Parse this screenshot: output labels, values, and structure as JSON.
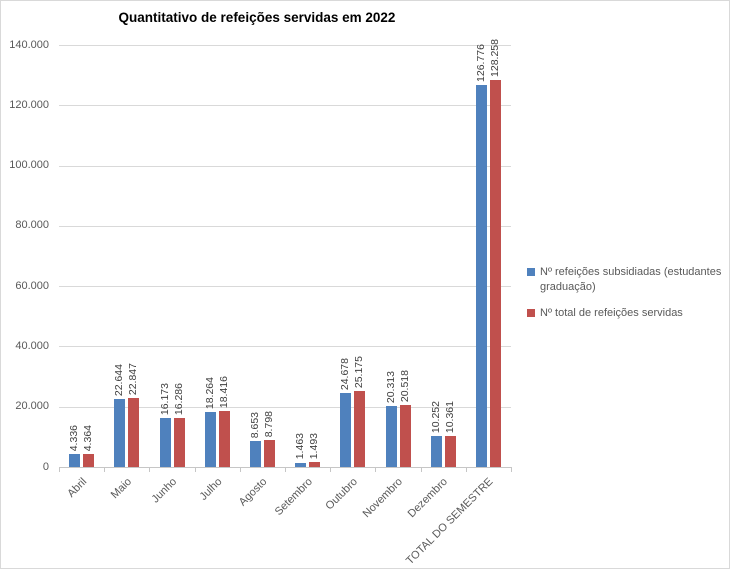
{
  "title": "Quantitativo de refeições servidas em 2022",
  "chart_data": {
    "type": "bar",
    "categories": [
      "Abril",
      "Maio",
      "Junho",
      "Julho",
      "Agosto",
      "Setembro",
      "Outubro",
      "Novembro",
      "Dezembro",
      "TOTAL DO SEMESTRE"
    ],
    "series": [
      {
        "name": "Nº refeições subsidiadas (estudantes graduação)",
        "color": "#4F81BD",
        "values": [
          4336,
          22644,
          16173,
          18264,
          8653,
          1463,
          24678,
          20313,
          10252,
          126776
        ],
        "labels": [
          "4.336",
          "22.644",
          "16.173",
          "18.264",
          "8.653",
          "1.463",
          "24.678",
          "20.313",
          "10.252",
          "126.776"
        ]
      },
      {
        "name": "Nº total de refeições servidas",
        "color": "#C0504D",
        "values": [
          4364,
          22847,
          16286,
          18416,
          8798,
          1493,
          25175,
          20518,
          10361,
          128258
        ],
        "labels": [
          "4.364",
          "22.847",
          "16.286",
          "18.416",
          "8.798",
          "1.493",
          "25.175",
          "20.518",
          "10.361",
          "128.258"
        ]
      }
    ],
    "ylim": [
      0,
      140000
    ],
    "ytick_step": 20000,
    "ytick_labels": [
      "0",
      "20.000",
      "40.000",
      "60.000",
      "80.000",
      "100.000",
      "120.000",
      "140.000"
    ],
    "grid": true,
    "legend_position": "right",
    "xlabel": "",
    "ylabel": ""
  },
  "colors": {
    "grid": "#D9D9D9",
    "axis": "#C6C6C6",
    "tick_label": "#595959",
    "data_label": "#404040",
    "border": "#D9D9D9",
    "background": "#FFFFFF"
  }
}
